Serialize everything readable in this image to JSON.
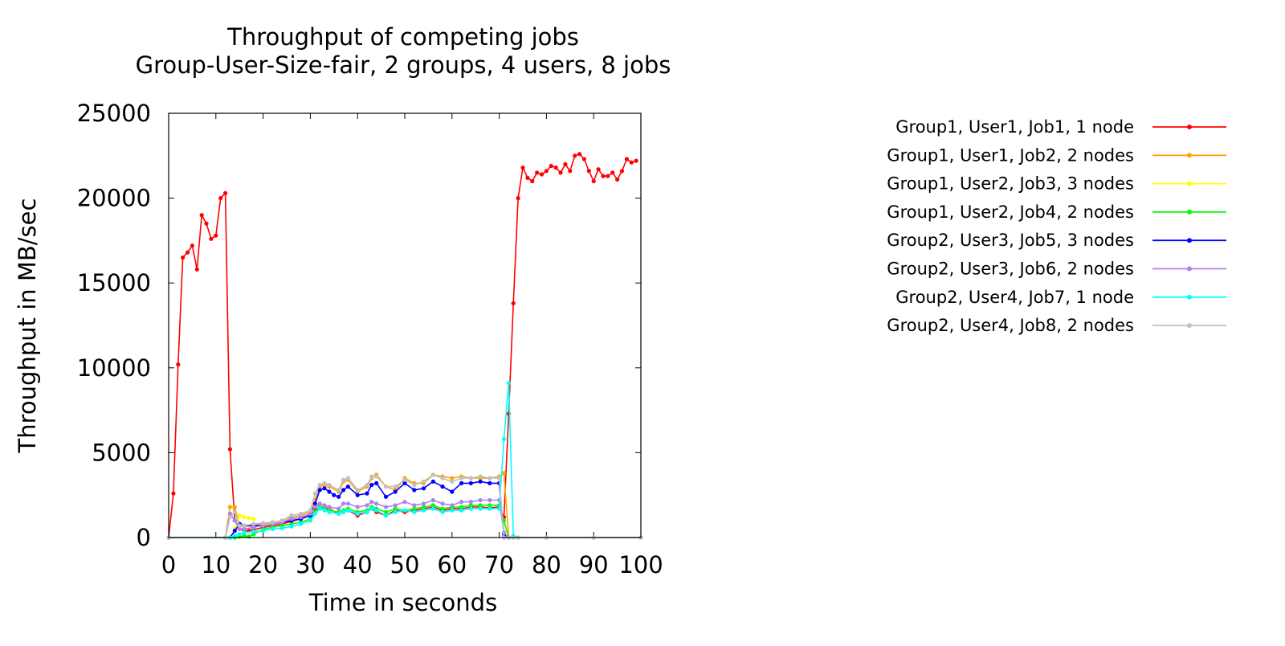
{
  "chart_data": {
    "type": "line",
    "title": "Throughput of competing jobs",
    "subtitle": "Group-User-Size-fair, 2 groups, 4 users, 8 jobs",
    "xlabel": "Time in seconds",
    "ylabel": "Throughput in MB/sec",
    "xlim": [
      0,
      100
    ],
    "ylim": [
      0,
      25000
    ],
    "xticks": [
      "0",
      "10",
      "20",
      "30",
      "40",
      "50",
      "60",
      "70",
      "80",
      "90",
      "100"
    ],
    "yticks": [
      "0",
      "5000",
      "10000",
      "15000",
      "20000",
      "25000"
    ],
    "grid": false,
    "legend_position": "right",
    "series": [
      {
        "name": "Group1, User1, Job1, 1 node",
        "color": "#ff0000",
        "x": [
          0,
          1,
          2,
          3,
          4,
          5,
          6,
          7,
          8,
          9,
          10,
          11,
          12,
          13,
          14,
          15,
          16,
          17,
          18,
          20,
          22,
          24,
          26,
          28,
          30,
          31,
          32,
          33,
          34,
          36,
          37,
          38,
          40,
          42,
          43,
          44,
          46,
          48,
          50,
          52,
          54,
          56,
          58,
          60,
          62,
          64,
          66,
          68,
          70,
          71,
          72,
          73,
          74,
          75,
          76,
          77,
          78,
          79,
          80,
          81,
          82,
          83,
          84,
          85,
          86,
          87,
          88,
          89,
          90,
          91,
          92,
          93,
          94,
          95,
          96,
          97,
          98,
          99
        ],
        "y": [
          0,
          2600,
          10200,
          16500,
          16800,
          17200,
          15800,
          19000,
          18500,
          17600,
          17800,
          20000,
          20300,
          5200,
          1000,
          500,
          400,
          400,
          450,
          600,
          700,
          800,
          950,
          1100,
          1300,
          1600,
          1800,
          1750,
          1700,
          1400,
          1500,
          1600,
          1300,
          1500,
          1700,
          1500,
          1300,
          1600,
          1500,
          1600,
          1700,
          1800,
          1600,
          1700,
          1700,
          1800,
          1800,
          1750,
          1800,
          1200,
          7300,
          13800,
          20000,
          21800,
          21200,
          21000,
          21500,
          21400,
          21600,
          21900,
          21800,
          21500,
          22000,
          21600,
          22500,
          22600,
          22300,
          21600,
          21000,
          21700,
          21300,
          21300,
          21500,
          21100,
          21600,
          22300,
          22100,
          22200
        ]
      },
      {
        "name": "Group1, User1, Job2, 2 nodes",
        "color": "#ffa500",
        "x": [
          0,
          12,
          13,
          14,
          15,
          16,
          18,
          20,
          22,
          24,
          26,
          28,
          30,
          31,
          32,
          33,
          34,
          36,
          37,
          38,
          40,
          42,
          43,
          44,
          46,
          48,
          50,
          52,
          54,
          56,
          58,
          60,
          62,
          64,
          66,
          68,
          70,
          71,
          72,
          73,
          74,
          80,
          90,
          100
        ],
        "y": [
          0,
          0,
          1800,
          1800,
          700,
          650,
          700,
          800,
          900,
          1000,
          1200,
          1300,
          1500,
          2200,
          3000,
          3100,
          3000,
          2700,
          3300,
          3400,
          2700,
          3000,
          3500,
          3700,
          3000,
          2800,
          3500,
          3200,
          3200,
          3700,
          3600,
          3500,
          3600,
          3500,
          3500,
          3500,
          3600,
          3800,
          0,
          0,
          0,
          0,
          0,
          0
        ]
      },
      {
        "name": "Group1, User2, Job3, 3 nodes",
        "color": "#ffff00",
        "x": [
          0,
          13,
          14,
          15,
          16,
          17,
          18
        ],
        "y": [
          0,
          0,
          500,
          1300,
          1200,
          1150,
          1100
        ]
      },
      {
        "name": "Group1, User2, Job4, 2 nodes",
        "color": "#00ff00",
        "x": [
          0,
          14,
          15,
          16,
          17,
          18,
          20,
          22,
          24,
          26,
          28,
          30,
          31,
          32,
          33,
          34,
          36,
          37,
          38,
          40,
          42,
          43,
          44,
          46,
          48,
          50,
          52,
          54,
          56,
          58,
          60,
          62,
          64,
          66,
          68,
          70,
          71,
          72
        ],
        "y": [
          0,
          0,
          50,
          100,
          50,
          200,
          500,
          600,
          700,
          800,
          900,
          1100,
          1500,
          1800,
          1700,
          1600,
          1500,
          1600,
          1700,
          1500,
          1600,
          1800,
          1700,
          1500,
          1700,
          1600,
          1700,
          1800,
          1900,
          1700,
          1800,
          1800,
          1900,
          1900,
          1900,
          1900,
          1000,
          0
        ]
      },
      {
        "name": "Group2, User3, Job5, 3 nodes",
        "color": "#0000ff",
        "x": [
          0,
          13,
          14,
          15,
          16,
          18,
          20,
          22,
          24,
          26,
          28,
          30,
          31,
          32,
          33,
          34,
          35,
          36,
          37,
          38,
          40,
          42,
          43,
          44,
          46,
          48,
          50,
          52,
          54,
          56,
          58,
          60,
          62,
          64,
          66,
          68,
          70,
          71,
          72
        ],
        "y": [
          0,
          0,
          400,
          800,
          700,
          700,
          700,
          800,
          900,
          1000,
          1100,
          1300,
          2000,
          2800,
          2900,
          2700,
          2500,
          2400,
          2800,
          3000,
          2500,
          2600,
          3100,
          3200,
          2400,
          2700,
          3200,
          2800,
          2900,
          3300,
          3000,
          2700,
          3200,
          3200,
          3300,
          3200,
          3200,
          200,
          0
        ]
      },
      {
        "name": "Group2, User3, Job6, 2 nodes",
        "color": "#b080f0",
        "x": [
          0,
          12,
          13,
          14,
          15,
          16,
          18,
          20,
          22,
          24,
          26,
          28,
          30,
          31,
          32,
          33,
          34,
          36,
          37,
          38,
          40,
          42,
          43,
          44,
          46,
          48,
          50,
          52,
          54,
          56,
          58,
          60,
          62,
          64,
          66,
          68,
          70,
          71,
          72
        ],
        "y": [
          0,
          0,
          1400,
          1000,
          500,
          500,
          600,
          700,
          800,
          900,
          1100,
          1200,
          1400,
          1800,
          2000,
          1900,
          1800,
          1700,
          2000,
          2000,
          1800,
          1900,
          2100,
          2000,
          1800,
          1900,
          2100,
          1900,
          2000,
          2200,
          2000,
          1900,
          2100,
          2100,
          2200,
          2200,
          2200,
          300,
          0
        ]
      },
      {
        "name": "Group2, User4, Job7, 1 node",
        "color": "#00ffff",
        "x": [
          0,
          13,
          14,
          15,
          16,
          18,
          20,
          22,
          24,
          26,
          28,
          30,
          31,
          32,
          33,
          34,
          36,
          37,
          38,
          40,
          42,
          43,
          44,
          46,
          48,
          50,
          52,
          54,
          56,
          58,
          60,
          62,
          64,
          66,
          68,
          70,
          71,
          72,
          73,
          74,
          80,
          90,
          100
        ],
        "y": [
          0,
          0,
          100,
          200,
          300,
          350,
          400,
          500,
          550,
          650,
          800,
          1000,
          1400,
          1700,
          1600,
          1500,
          1400,
          1500,
          1600,
          1400,
          1500,
          1700,
          1600,
          1300,
          1500,
          1600,
          1500,
          1600,
          1700,
          1500,
          1600,
          1600,
          1700,
          1700,
          1700,
          1700,
          5800,
          9100,
          100,
          0,
          0,
          0,
          0
        ]
      },
      {
        "name": "Group2, User4, Job8, 2 nodes",
        "color": "#c0c0c0",
        "x": [
          0,
          12,
          13,
          14,
          15,
          16,
          18,
          20,
          22,
          24,
          26,
          28,
          30,
          31,
          32,
          33,
          34,
          36,
          37,
          38,
          40,
          42,
          43,
          44,
          46,
          48,
          50,
          52,
          54,
          56,
          58,
          60,
          62,
          64,
          66,
          68,
          70,
          71,
          72,
          73,
          74,
          80,
          90,
          100
        ],
        "y": [
          0,
          0,
          1200,
          1500,
          700,
          700,
          800,
          850,
          900,
          1000,
          1300,
          1400,
          1600,
          2600,
          3100,
          3200,
          3100,
          2800,
          3400,
          3500,
          2800,
          3100,
          3600,
          3600,
          3000,
          3000,
          3400,
          3100,
          3300,
          3700,
          3500,
          3300,
          3500,
          3500,
          3600,
          3500,
          3500,
          0,
          0,
          0,
          0,
          0,
          0,
          0
        ]
      }
    ]
  }
}
